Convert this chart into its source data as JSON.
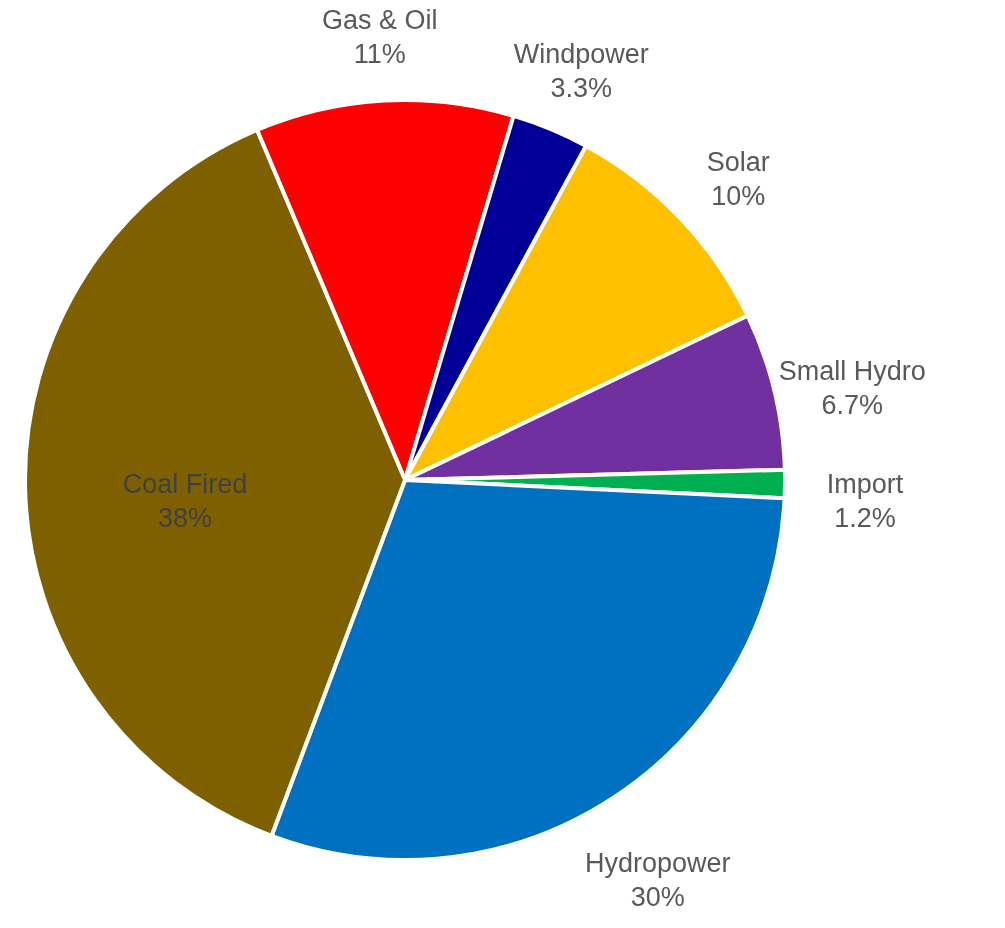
{
  "chart_data": {
    "type": "pie",
    "categories": [
      "Gas & Oil",
      "Windpower",
      "Solar",
      "Small Hydro",
      "Import",
      "Hydropower",
      "Coal Fired"
    ],
    "values": [
      11,
      3.3,
      10,
      6.7,
      1.2,
      30,
      38
    ],
    "value_labels": [
      "11%",
      "3.3%",
      "10%",
      "6.7%",
      "1.2%",
      "30%",
      "38%"
    ],
    "colors": [
      "#ff0000",
      "#000099",
      "#ffc000",
      "#7030a0",
      "#00b050",
      "#0070c0",
      "#7f6000"
    ]
  }
}
